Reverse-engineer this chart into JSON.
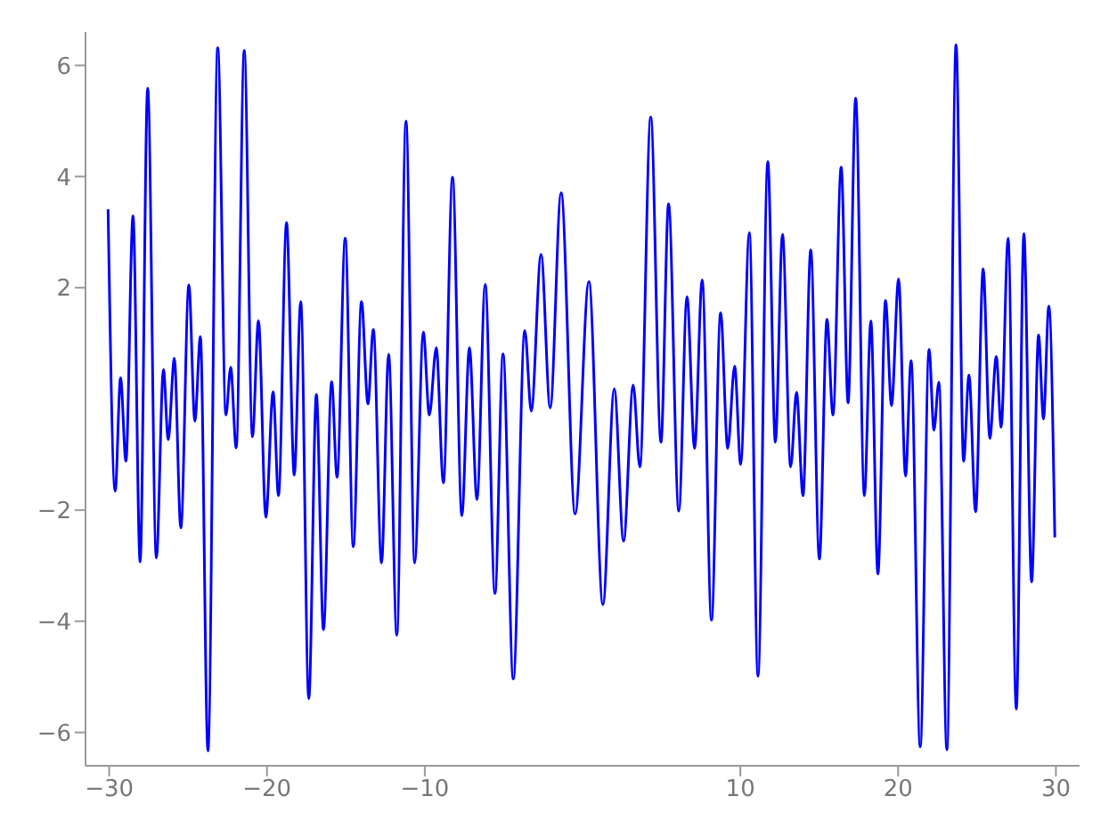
{
  "chart_data": {
    "type": "line",
    "xlim": [
      -31.5,
      31.5
    ],
    "ylim": [
      -6.6,
      6.6
    ],
    "xticks": [
      -30,
      -20,
      -10,
      10,
      20,
      30
    ],
    "yticks": [
      -6,
      -4,
      -2,
      2,
      4,
      6
    ],
    "marker": "none",
    "line_style": "solid",
    "series": [
      {
        "color": "#0000ff",
        "x": [
          -30.07,
          -29.62,
          -29.28,
          -28.94,
          -28.49,
          -28.04,
          -27.56,
          -27.01,
          -26.56,
          -26.26,
          -25.87,
          -25.46,
          -24.95,
          -24.57,
          -24.22,
          -23.74,
          -23.12,
          -22.6,
          -22.3,
          -21.95,
          -21.44,
          -20.92,
          -20.54,
          -20.07,
          -19.61,
          -19.27,
          -18.76,
          -18.27,
          -17.86,
          -17.35,
          -16.87,
          -16.42,
          -15.9,
          -15.56,
          -15.04,
          -14.53,
          -14.01,
          -13.6,
          -13.26,
          -12.74,
          -12.29,
          -11.77,
          -11.19,
          -10.64,
          -10.09,
          -9.71,
          -9.27,
          -8.82,
          -8.24,
          -7.65,
          -7.17,
          -6.69,
          -6.17,
          -5.55,
          -5.04,
          -4.39,
          -3.66,
          -3.25,
          -2.63,
          -2.05,
          -1.36,
          -0.47,
          0.4,
          1.29,
          2.01,
          2.6,
          3.21,
          3.63,
          4.32,
          4.97,
          5.45,
          6.1,
          6.62,
          7.1,
          7.58,
          8.17,
          8.75,
          9.2,
          9.64,
          10.02,
          10.57,
          11.12,
          11.74,
          12.22,
          12.67,
          13.19,
          13.56,
          13.97,
          14.46,
          15.01,
          15.49,
          15.87,
          16.39,
          16.83,
          17.31,
          17.86,
          18.27,
          18.72,
          19.2,
          19.58,
          20.03,
          20.47,
          20.82,
          21.4,
          21.96,
          22.27,
          22.58,
          23.09,
          23.67,
          24.15,
          24.49,
          24.91,
          25.39,
          25.81,
          26.22,
          26.53,
          26.97,
          27.49,
          27.97,
          28.46,
          28.9,
          29.21,
          29.55,
          29.93
        ],
        "values": [
          3.41,
          -1.66,
          0.38,
          -1.12,
          3.29,
          -2.93,
          5.59,
          -2.86,
          0.53,
          -0.73,
          0.73,
          -2.32,
          2.05,
          -0.4,
          1.12,
          -6.33,
          6.32,
          -0.29,
          0.57,
          -0.88,
          6.27,
          -0.68,
          1.41,
          -2.13,
          0.13,
          -1.74,
          3.17,
          -1.37,
          1.75,
          -5.39,
          0.08,
          -4.15,
          0.31,
          -1.41,
          2.89,
          -2.66,
          1.75,
          -0.09,
          1.25,
          -2.95,
          0.8,
          -4.25,
          5.0,
          -2.95,
          1.2,
          -0.29,
          0.92,
          -1.51,
          3.99,
          -2.1,
          0.92,
          -1.81,
          2.06,
          -3.5,
          0.81,
          -5.04,
          1.23,
          -0.22,
          2.6,
          -0.16,
          3.71,
          -2.07,
          2.11,
          -3.7,
          0.18,
          -2.56,
          0.25,
          -1.22,
          5.07,
          -0.78,
          3.51,
          -2.02,
          1.84,
          -0.89,
          2.14,
          -3.98,
          1.55,
          -0.89,
          0.59,
          -1.18,
          2.99,
          -4.99,
          4.27,
          -0.78,
          2.96,
          -1.22,
          0.12,
          -1.74,
          2.68,
          -2.88,
          1.43,
          -0.29,
          4.17,
          -0.07,
          5.41,
          -1.74,
          1.4,
          -3.15,
          1.77,
          -0.12,
          2.16,
          -1.39,
          0.69,
          -6.26,
          0.89,
          -0.56,
          0.3,
          -6.31,
          6.37,
          -1.12,
          0.43,
          -2.03,
          2.34,
          -0.71,
          0.76,
          -0.51,
          2.89,
          -5.58,
          2.97,
          -3.29,
          1.15,
          -0.36,
          1.67,
          -2.49
        ]
      }
    ]
  }
}
